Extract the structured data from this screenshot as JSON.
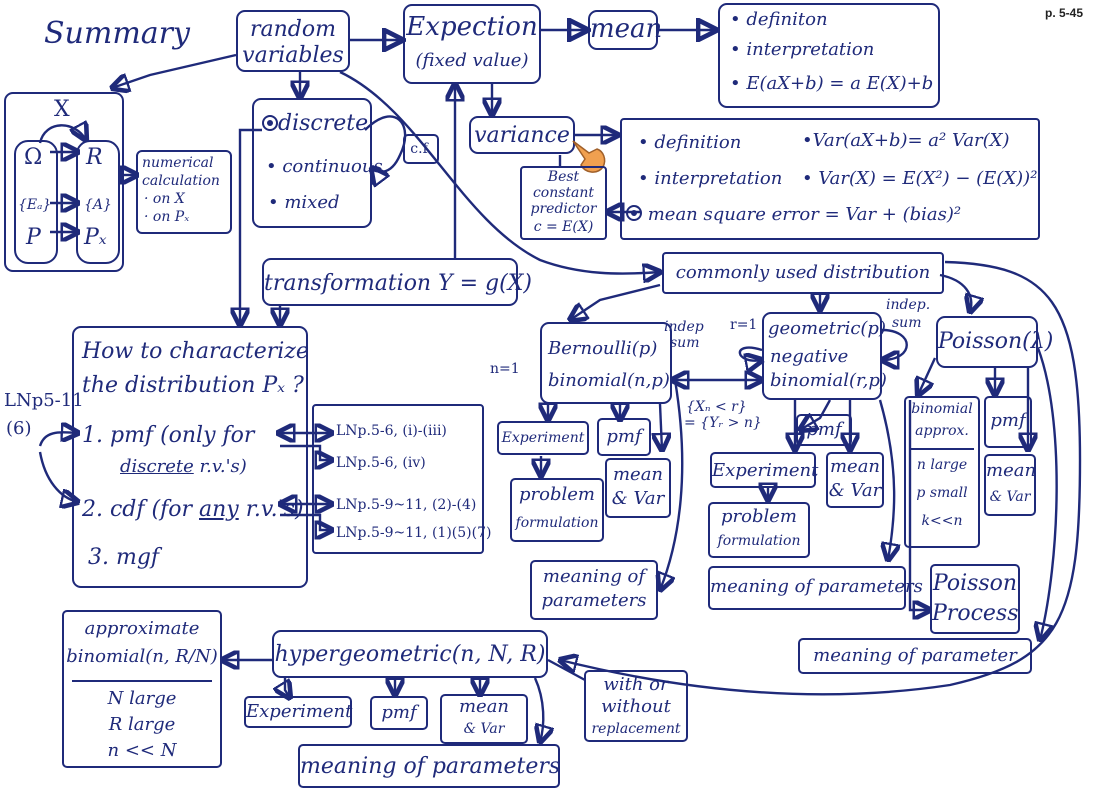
{
  "page_number": "p. 5-45",
  "title": "Summary",
  "rv": {
    "line1": "random",
    "line2": "variables"
  },
  "expectation": {
    "line1": "Expection",
    "line2": "(fixed value)"
  },
  "mean": "mean",
  "mean_props": {
    "l1": "• definiton",
    "l2": "• interpretation",
    "l3": "• E(aX+b) = a E(X)+b"
  },
  "prob_space": {
    "x": "X",
    "omega": "Ω",
    "ea": "{Eₐ}",
    "p": "P",
    "r": "R",
    "a": "{A}",
    "px": "Pₓ"
  },
  "numerical": {
    "l1": "numerical",
    "l2": "calculation",
    "l3": "· on X",
    "l4": "· on Pₓ"
  },
  "types": {
    "discrete": "discrete",
    "continuous": "• continuous",
    "mixed": "• mixed",
    "cf": "c.f."
  },
  "variance": "variance",
  "var_props": {
    "def": "• definition",
    "interp": "• interpretation",
    "mse": "mean square error = Var + (bias)²",
    "f1": "•Var(aX+b)= a² Var(X)",
    "f2": "• Var(X) = E(X²) − (E(X))²"
  },
  "best": {
    "l1": "Best",
    "l2": "constant",
    "l3": "predictor",
    "l4": "c = E(X)"
  },
  "transformation": "transformation  Y = g(X)",
  "commonly": "commonly used distribution",
  "characterize": {
    "l1": "How to characterize",
    "l2": "the distribution Pₓ ?",
    "pmf": "1. pmf (only for",
    "pmf2": "discrete",
    "pmf3": " r.v.'s)",
    "cdf": "2. cdf (for ",
    "cdf2": "any",
    "cdf3": " r.v.'s)",
    "mgf": "3. mgf"
  },
  "lnp_side": {
    "l1": "LNp5-11",
    "l2": "(6)"
  },
  "lnp": {
    "l1": "LNp.5-6, (i)-(iii)",
    "l2": "LNp.5-6, (iv)",
    "l3": "LNp.5-9~11, (2)-(4)",
    "l4": "LNp.5-9~11, (1)(5)(7)"
  },
  "bernoulli": {
    "l1": "Bernoulli(p)",
    "l2": "binomial(n,p)",
    "n1": "n=1",
    "indep": "indep",
    "sum": "sum"
  },
  "geometric": {
    "l1": "geometric(p)",
    "l2": "negative",
    "l3": "binomial(r,p)",
    "r1": "r=1",
    "indep": "indep.",
    "sum": "sum"
  },
  "poisson": {
    "name": "Poisson(λ)",
    "process1": "Poisson",
    "process2": "Process"
  },
  "xn": {
    "l1": "{Xₙ < r}",
    "l2": "= {Yᵣ > n}"
  },
  "labels": {
    "experiment": "Experiment",
    "pmf": "pmf",
    "mean_var1": "mean",
    "mean_var2": "& Var",
    "problem1": "problem",
    "problem2": "formulation",
    "meaning_params1": "meaning of",
    "meaning_params2": "parameters",
    "meaning_params": "meaning of parameters",
    "meaning_param": "meaning of parameter"
  },
  "binom_approx": {
    "l1": "binomial",
    "l2": "approx.",
    "l3": "n large",
    "l4": "p small",
    "l5": "k<<n"
  },
  "hypergeometric": "hypergeometric(n, N, R)",
  "approx": {
    "l1": "approximate",
    "l2": "binomial(n, R/N)",
    "l3": "N large",
    "l4": "R large",
    "l5": "n << N"
  },
  "replacement": {
    "l1": "with or",
    "l2": "without",
    "l3": "replacement"
  }
}
